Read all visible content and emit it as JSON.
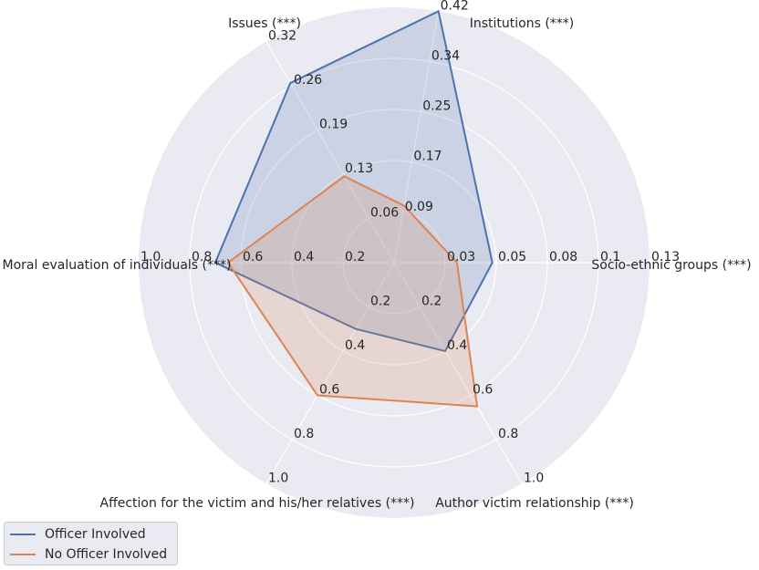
{
  "chart_data": {
    "type": "radar",
    "axes": [
      {
        "label": "Institutions (***)",
        "ticks": [
          "0.09",
          "0.17",
          "0.25",
          "0.34",
          "0.42"
        ],
        "max": 0.42
      },
      {
        "label": "Socio-ethnic groups (***)",
        "ticks": [
          "0.03",
          "0.05",
          "0.08",
          "0.1",
          "0.13"
        ],
        "max": 0.13
      },
      {
        "label": "Author victim relationship (***)",
        "ticks": [
          "0.2",
          "0.4",
          "0.6",
          "0.8",
          "1.0"
        ],
        "max": 1.0
      },
      {
        "label": "Affection for the victim and his/her relatives (***)",
        "ticks": [
          "0.2",
          "0.4",
          "0.6",
          "0.8",
          "1.0"
        ],
        "max": 1.0
      },
      {
        "label": "Moral evaluation of individuals (***)",
        "ticks": [
          "0.2",
          "0.4",
          "0.6",
          "0.8",
          "1.0"
        ],
        "max": 1.0
      },
      {
        "label": "Issues (***)",
        "ticks": [
          "0.06",
          "0.13",
          "0.19",
          "0.26",
          "0.32"
        ],
        "max": 0.32
      }
    ],
    "series": [
      {
        "name": "Officer Involved",
        "color": "#4c72b0",
        "values": [
          0.42,
          0.05,
          0.4,
          0.3,
          0.7,
          0.26
        ]
      },
      {
        "name": "No Officer Involved",
        "color": "#dd8452",
        "values": [
          0.095,
          0.032,
          0.65,
          0.6,
          0.65,
          0.125
        ]
      }
    ],
    "grid": true,
    "legend_position": "bottom-left"
  }
}
